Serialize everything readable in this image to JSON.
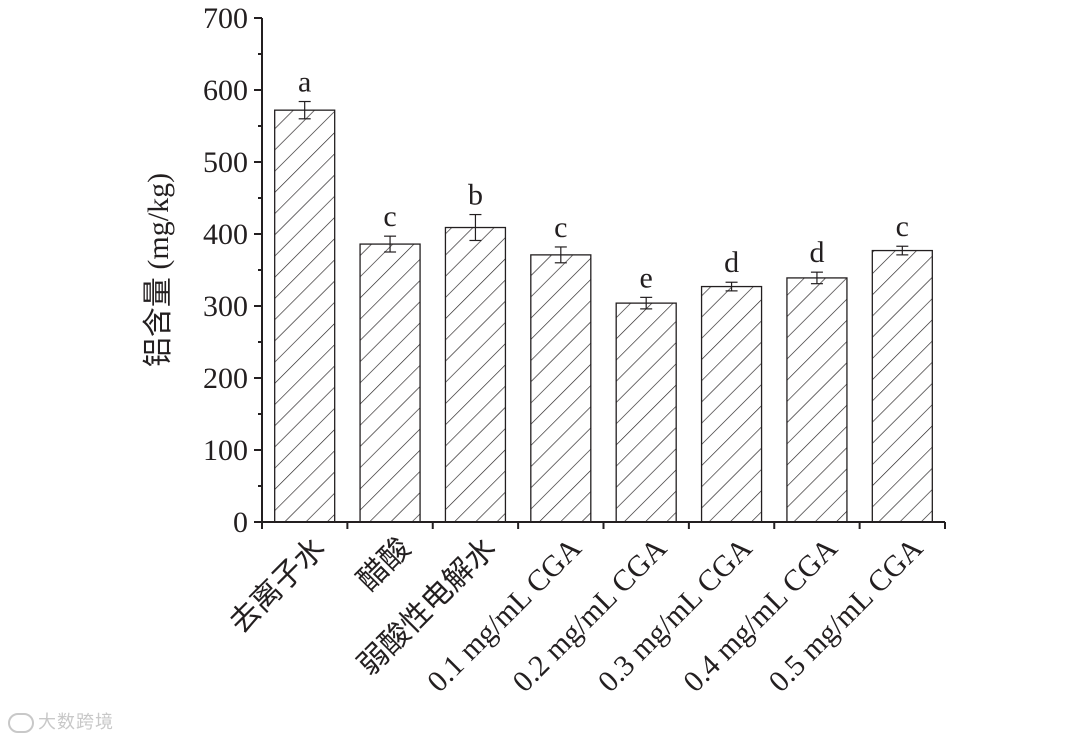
{
  "chart_data": {
    "type": "bar",
    "title": "",
    "xlabel": "",
    "ylabel": "铝含量 (mg/kg)",
    "ylim": [
      0,
      700
    ],
    "yticks": [
      0,
      100,
      200,
      300,
      400,
      500,
      600,
      700
    ],
    "grid": false,
    "bar_fill": "diagonal-hatch",
    "categories": [
      "去离子水",
      "醋酸",
      "弱酸性电解水",
      "0.1 mg/mL CGA",
      "0.2 mg/mL CGA",
      "0.3 mg/mL CGA",
      "0.4 mg/mL CGA",
      "0.5 mg/mL CGA"
    ],
    "values": [
      572,
      386,
      409,
      371,
      304,
      327,
      339,
      377
    ],
    "errors": [
      12,
      11,
      18,
      11,
      8,
      6,
      8,
      6
    ],
    "significance": [
      "a",
      "c",
      "b",
      "c",
      "e",
      "d",
      "d",
      "c"
    ]
  },
  "watermark": "大数跨境"
}
